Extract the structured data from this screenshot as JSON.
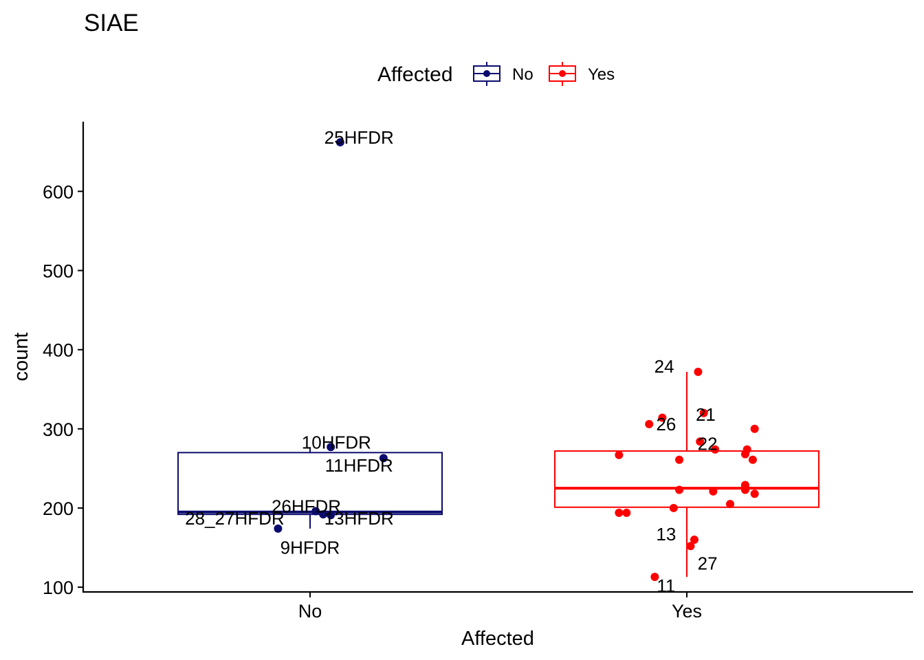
{
  "chart_data": {
    "type": "boxplot",
    "title": "SIAE",
    "xlabel": "Affected",
    "ylabel": "count",
    "legend": {
      "title": "Affected",
      "position": "top",
      "entries": [
        {
          "label": "No",
          "color": "#0b0b6e"
        },
        {
          "label": "Yes",
          "color": "#ff0000"
        }
      ]
    },
    "categories": [
      "No",
      "Yes"
    ],
    "y_ticks": [
      100,
      200,
      300,
      400,
      500,
      600
    ],
    "ylim": [
      94,
      688
    ],
    "groups": [
      {
        "name": "No",
        "color": "#0b0b6e",
        "box": {
          "min": 174,
          "q1": 192,
          "median": 195,
          "q3": 270,
          "max": 277
        },
        "points": [
          {
            "label": "25HFDR",
            "y": 662,
            "jitter": 0.08,
            "lx": 0.13,
            "ly": 668
          },
          {
            "label": "10HFDR",
            "y": 277,
            "jitter": 0.055,
            "lx": 0.07,
            "ly": 283
          },
          {
            "label": "11HFDR",
            "y": 263,
            "jitter": 0.195,
            "lx": 0.13,
            "ly": 254
          },
          {
            "label": "26HFDR",
            "y": 196,
            "jitter": 0.015,
            "lx": -0.01,
            "ly": 202
          },
          {
            "label": "28_27HFDR",
            "y": 192,
            "jitter": 0.035,
            "lx": -0.2,
            "ly": 187
          },
          {
            "label": "13HFDR",
            "y": 191,
            "jitter": 0.055,
            "lx": 0.13,
            "ly": 187
          },
          {
            "label": "9HFDR",
            "y": 174,
            "jitter": -0.085,
            "lx": 0.0,
            "ly": 150
          }
        ]
      },
      {
        "name": "Yes",
        "color": "#ff0000",
        "box": {
          "min": 113,
          "q1": 201,
          "median": 225,
          "q3": 272,
          "max": 372
        },
        "points": [
          {
            "label": "24",
            "y": 372,
            "jitter": 0.03,
            "lx": -0.06,
            "ly": 379
          },
          {
            "label": "21",
            "y": 320,
            "jitter": 0.045,
            "lx": 0.05,
            "ly": 318,
            "hidden": true
          },
          {
            "label": "26",
            "y": 306,
            "jitter": -0.1,
            "lx": -0.055,
            "ly": 306
          },
          {
            "label": "",
            "y": 314,
            "jitter": -0.065
          },
          {
            "label": "22",
            "y": 284,
            "jitter": 0.035,
            "lx": 0.055,
            "ly": 281,
            "hidden": true
          },
          {
            "label": "",
            "y": 300,
            "jitter": 0.18
          },
          {
            "label": "",
            "y": 274,
            "jitter": 0.16
          },
          {
            "label": "",
            "y": 274,
            "jitter": 0.075
          },
          {
            "label": "",
            "y": 268,
            "jitter": 0.155
          },
          {
            "label": "",
            "y": 267,
            "jitter": -0.18
          },
          {
            "label": "",
            "y": 261,
            "jitter": -0.02
          },
          {
            "label": "",
            "y": 261,
            "jitter": 0.175
          },
          {
            "label": "",
            "y": 229,
            "jitter": 0.155
          },
          {
            "label": "",
            "y": 226,
            "jitter": 0.155
          },
          {
            "label": "",
            "y": 223,
            "jitter": -0.02
          },
          {
            "label": "",
            "y": 221,
            "jitter": 0.07
          },
          {
            "label": "",
            "y": 223,
            "jitter": 0.155
          },
          {
            "label": "",
            "y": 218,
            "jitter": 0.18
          },
          {
            "label": "",
            "y": 205,
            "jitter": 0.115
          },
          {
            "label": "",
            "y": 200,
            "jitter": -0.035
          },
          {
            "label": "",
            "y": 194,
            "jitter": -0.18
          },
          {
            "label": "",
            "y": 194,
            "jitter": -0.16
          },
          {
            "label": "13",
            "y": 160,
            "jitter": 0.02,
            "lx": -0.055,
            "ly": 167,
            "hidden": true
          },
          {
            "label": "27",
            "y": 152,
            "jitter": 0.01,
            "lx": 0.055,
            "ly": 130,
            "hidden": true
          },
          {
            "label": "11",
            "y": 113,
            "jitter": -0.085,
            "lx": -0.055,
            "ly": 102
          }
        ]
      }
    ]
  }
}
